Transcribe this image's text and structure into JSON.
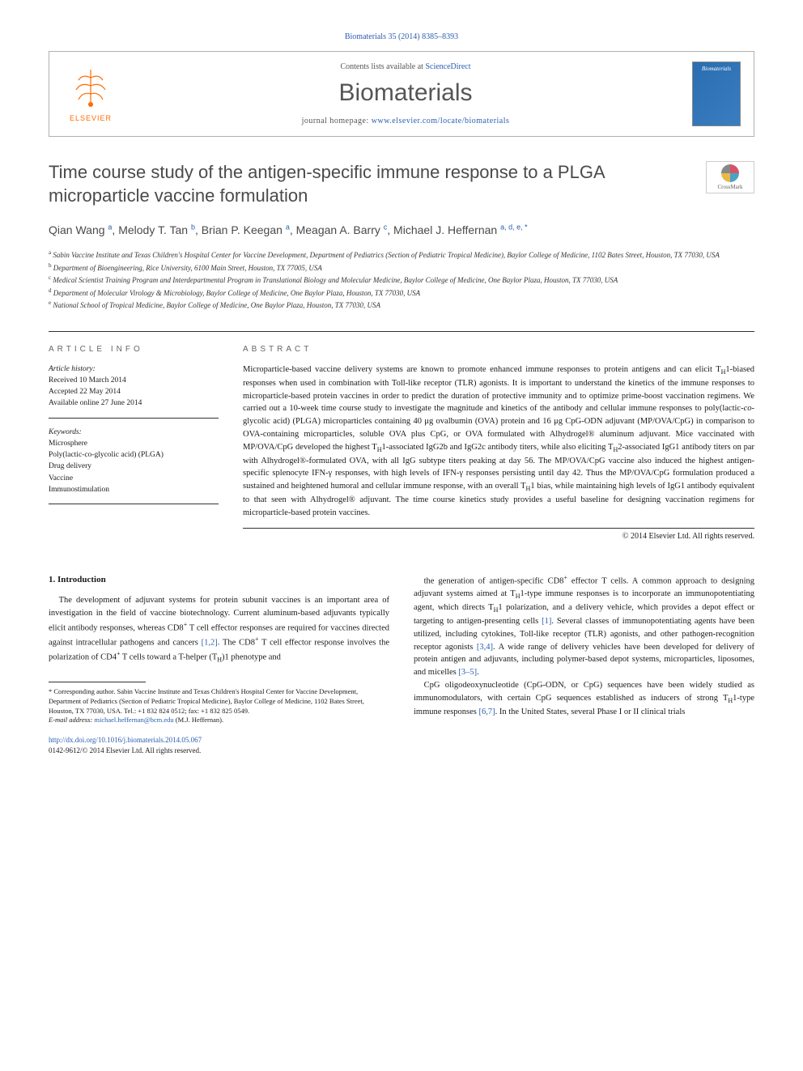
{
  "citation": "Biomaterials 35 (2014) 8385–8393",
  "header": {
    "contents_prefix": "Contents lists available at ",
    "contents_link": "ScienceDirect",
    "journal": "Biomaterials",
    "homepage_prefix": "journal homepage: ",
    "homepage_url": "www.elsevier.com/locate/biomaterials",
    "publisher": "ELSEVIER",
    "cover_text": "Biomaterials"
  },
  "crossmark": "CrossMark",
  "title": "Time course study of the antigen-specific immune response to a PLGA microparticle vaccine formulation",
  "authors_html": "Qian Wang <sup>a</sup>, Melody T. Tan <sup>b</sup>, Brian P. Keegan <sup>a</sup>, Meagan A. Barry <sup>c</sup>, Michael J. Heffernan <sup>a, d, e, *</sup>",
  "affiliations": [
    "a Sabin Vaccine Institute and Texas Children's Hospital Center for Vaccine Development, Department of Pediatrics (Section of Pediatric Tropical Medicine), Baylor College of Medicine, 1102 Bates Street, Houston, TX 77030, USA",
    "b Department of Bioengineering, Rice University, 6100 Main Street, Houston, TX 77005, USA",
    "c Medical Scientist Training Program and Interdepartmental Program in Translational Biology and Molecular Medicine, Baylor College of Medicine, One Baylor Plaza, Houston, TX 77030, USA",
    "d Department of Molecular Virology & Microbiology, Baylor College of Medicine, One Baylor Plaza, Houston, TX 77030, USA",
    "e National School of Tropical Medicine, Baylor College of Medicine, One Baylor Plaza, Houston, TX 77030, USA"
  ],
  "info": {
    "label": "ARTICLE INFO",
    "history_label": "Article history:",
    "received": "Received 10 March 2014",
    "accepted": "Accepted 22 May 2014",
    "online": "Available online 27 June 2014",
    "keywords_label": "Keywords:",
    "keywords": [
      "Microsphere",
      "Poly(lactic-co-glycolic acid) (PLGA)",
      "Drug delivery",
      "Vaccine",
      "Immunostimulation"
    ]
  },
  "abstract": {
    "label": "ABSTRACT",
    "text_html": "Microparticle-based vaccine delivery systems are known to promote enhanced immune responses to protein antigens and can elicit T<sub>H</sub>1-biased responses when used in combination with Toll-like receptor (TLR) agonists. It is important to understand the kinetics of the immune responses to microparticle-based protein vaccines in order to predict the duration of protective immunity and to optimize prime-boost vaccination regimens. We carried out a 10-week time course study to investigate the magnitude and kinetics of the antibody and cellular immune responses to poly(lactic-<i>co</i>-glycolic acid) (PLGA) microparticles containing 40 μg ovalbumin (OVA) protein and 16 μg CpG-ODN adjuvant (MP/OVA/CpG) in comparison to OVA-containing microparticles, soluble OVA plus CpG, or OVA formulated with Alhydrogel® aluminum adjuvant. Mice vaccinated with MP/OVA/CpG developed the highest T<sub>H</sub>1-associated IgG2b and IgG2c antibody titers, while also eliciting T<sub>H</sub>2-associated IgG1 antibody titers on par with Alhydrogel®-formulated OVA, with all IgG subtype titers peaking at day 56. The MP/OVA/CpG vaccine also induced the highest antigen-specific splenocyte IFN-γ responses, with high levels of IFN-γ responses persisting until day 42. Thus the MP/OVA/CpG formulation produced a sustained and heightened humoral and cellular immune response, with an overall T<sub>H</sub>1 bias, while maintaining high levels of IgG1 antibody equivalent to that seen with Alhydrogel® adjuvant. The time course kinetics study provides a useful baseline for designing vaccination regimens for microparticle-based protein vaccines.",
    "copyright": "© 2014 Elsevier Ltd. All rights reserved."
  },
  "body": {
    "intro_heading": "1. Introduction",
    "col1_html": "The development of adjuvant systems for protein subunit vaccines is an important area of investigation in the field of vaccine biotechnology. Current aluminum-based adjuvants typically elicit antibody responses, whereas CD8<sup>+</sup> T cell effector responses are required for vaccines directed against intracellular pathogens and cancers <span class='ref-link'>[1,2]</span>. The CD8<sup>+</sup> T cell effector response involves the polarization of CD4<sup>+</sup> T cells toward a T-helper (T<sub>H</sub>)1 phenotype and",
    "col2_p1_html": "the generation of antigen-specific CD8<sup>+</sup> effector T cells. A common approach to designing adjuvant systems aimed at T<sub>H</sub>1-type immune responses is to incorporate an immunopotentiating agent, which directs T<sub>H</sub>1 polarization, and a delivery vehicle, which provides a depot effect or targeting to antigen-presenting cells <span class='ref-link'>[1]</span>. Several classes of immunopotentiating agents have been utilized, including cytokines, Toll-like receptor (TLR) agonists, and other pathogen-recognition receptor agonists <span class='ref-link'>[3,4]</span>. A wide range of delivery vehicles have been developed for delivery of protein antigen and adjuvants, including polymer-based depot systems, microparticles, liposomes, and micelles <span class='ref-link'>[3–5]</span>.",
    "col2_p2_html": "CpG oligodeoxynucleotide (CpG-ODN, or CpG) sequences have been widely studied as immunomodulators, with certain CpG sequences established as inducers of strong T<sub>H</sub>1-type immune responses <span class='ref-link'>[6,7]</span>. In the United States, several Phase I or II clinical trials"
  },
  "corresponding": {
    "text": "* Corresponding author. Sabin Vaccine Institute and Texas Children's Hospital Center for Vaccine Development, Department of Pediatrics (Section of Pediatric Tropical Medicine), Baylor College of Medicine, 1102 Bates Street, Houston, TX 77030, USA. Tel.: +1 832 824 0512; fax: +1 832 825 0549.",
    "email_label": "E-mail address: ",
    "email": "michael.heffernan@bcm.edu",
    "email_attr": " (M.J. Heffernan)."
  },
  "footer": {
    "doi": "http://dx.doi.org/10.1016/j.biomaterials.2014.05.067",
    "issn_line": "0142-9612/© 2014 Elsevier Ltd. All rights reserved."
  }
}
